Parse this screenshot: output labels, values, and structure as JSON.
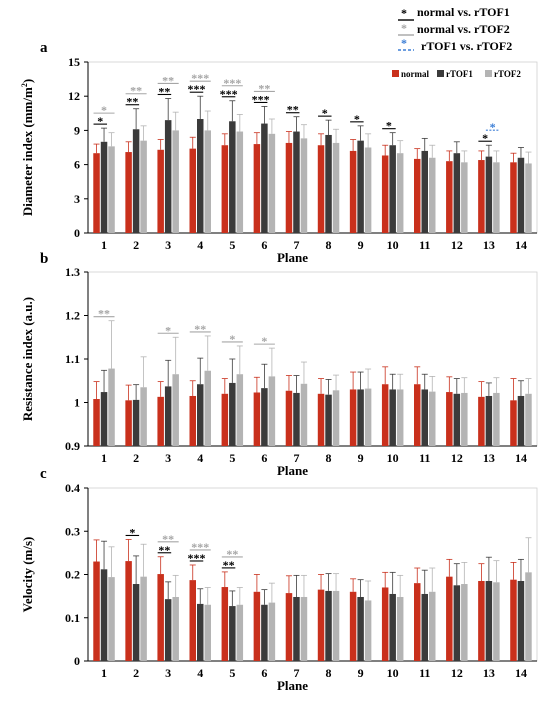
{
  "colors": {
    "normal": "#c9301c",
    "rTOF1": "#3b3b3b",
    "rTOF2": "#b4b4b4",
    "sig_normal_rTOF1": "#000000",
    "sig_normal_rTOF2": "#a6a6a6",
    "sig_rTOF1_rTOF2": "#3d7fd6"
  },
  "top_legend": [
    {
      "key": "normal_vs_rTOF1",
      "label": "normal vs. rTOF1",
      "color": "#000000",
      "dashed": false
    },
    {
      "key": "normal_vs_rTOF2",
      "label": "normal vs. rTOF2",
      "color": "#a6a6a6",
      "dashed": false
    },
    {
      "key": "rTOF1_vs_rTOF2",
      "label": "rTOF1 vs. rTOF2",
      "color": "#3d7fd6",
      "dashed": true
    }
  ],
  "chart_data": [
    {
      "panel": "a",
      "type": "bar",
      "xlabel": "Plane",
      "ylabel": "Diameter index (mm/m²)",
      "ylim": [
        0,
        15
      ],
      "yticks": [
        "0",
        "3",
        "6",
        "9",
        "12",
        "15"
      ],
      "categories": [
        "1",
        "2",
        "3",
        "4",
        "5",
        "6",
        "7",
        "8",
        "9",
        "10",
        "11",
        "12",
        "13",
        "14"
      ],
      "legend_labels": [
        "normal",
        "rTOF1",
        "rTOF2"
      ],
      "legend_position": "top-right",
      "series": [
        {
          "name": "normal",
          "values": [
            7.0,
            7.1,
            7.3,
            7.4,
            7.7,
            7.8,
            7.9,
            7.7,
            7.2,
            6.8,
            6.5,
            6.3,
            6.4,
            6.2
          ],
          "errors": [
            0.8,
            0.9,
            0.9,
            1.0,
            1.0,
            1.0,
            1.0,
            1.0,
            1.0,
            0.9,
            0.9,
            0.9,
            0.8,
            0.8
          ]
        },
        {
          "name": "rTOF1",
          "values": [
            8.0,
            9.1,
            9.9,
            10.0,
            9.8,
            9.6,
            8.9,
            8.6,
            8.1,
            7.7,
            7.2,
            7.0,
            6.7,
            6.6
          ],
          "errors": [
            1.2,
            1.8,
            1.9,
            2.0,
            1.8,
            1.5,
            1.3,
            1.3,
            1.3,
            1.1,
            1.1,
            1.0,
            1.0,
            0.9
          ]
        },
        {
          "name": "rTOF2",
          "values": [
            7.6,
            8.1,
            9.0,
            9.0,
            8.9,
            8.7,
            8.3,
            7.9,
            7.5,
            7.0,
            6.6,
            6.2,
            6.2,
            6.1
          ],
          "errors": [
            1.2,
            1.3,
            1.6,
            1.7,
            1.5,
            1.3,
            1.2,
            1.2,
            1.2,
            1.1,
            1.1,
            1.0,
            1.0,
            1.0
          ]
        }
      ],
      "significance": [
        {
          "plane": 1,
          "pair": "normal_rTOF1",
          "stars": "*"
        },
        {
          "plane": 1,
          "pair": "normal_rTOF2",
          "stars": "*"
        },
        {
          "plane": 2,
          "pair": "normal_rTOF1",
          "stars": "**"
        },
        {
          "plane": 2,
          "pair": "normal_rTOF2",
          "stars": "**"
        },
        {
          "plane": 3,
          "pair": "normal_rTOF1",
          "stars": "**"
        },
        {
          "plane": 3,
          "pair": "normal_rTOF2",
          "stars": "**"
        },
        {
          "plane": 4,
          "pair": "normal_rTOF1",
          "stars": "***"
        },
        {
          "plane": 4,
          "pair": "normal_rTOF2",
          "stars": "***"
        },
        {
          "plane": 5,
          "pair": "normal_rTOF1",
          "stars": "***"
        },
        {
          "plane": 5,
          "pair": "normal_rTOF2",
          "stars": "***"
        },
        {
          "plane": 6,
          "pair": "normal_rTOF1",
          "stars": "***"
        },
        {
          "plane": 6,
          "pair": "normal_rTOF2",
          "stars": "**"
        },
        {
          "plane": 7,
          "pair": "normal_rTOF1",
          "stars": "**"
        },
        {
          "plane": 8,
          "pair": "normal_rTOF1",
          "stars": "*"
        },
        {
          "plane": 9,
          "pair": "normal_rTOF1",
          "stars": "*"
        },
        {
          "plane": 10,
          "pair": "normal_rTOF1",
          "stars": "*"
        },
        {
          "plane": 13,
          "pair": "normal_rTOF1",
          "stars": "*"
        },
        {
          "plane": 13,
          "pair": "rTOF1_rTOF2",
          "stars": "*"
        }
      ]
    },
    {
      "panel": "b",
      "type": "bar",
      "xlabel": "Plane",
      "ylabel": "Resistance index (a.u.)",
      "ylim": [
        0.9,
        1.3
      ],
      "yticks": [
        "0.9",
        "1",
        "1.1",
        "1.2",
        "1.3"
      ],
      "categories": [
        "1",
        "2",
        "3",
        "4",
        "5",
        "6",
        "7",
        "8",
        "9",
        "10",
        "11",
        "12",
        "13",
        "14"
      ],
      "series": [
        {
          "name": "normal",
          "values": [
            1.008,
            1.005,
            1.013,
            1.015,
            1.02,
            1.023,
            1.027,
            1.02,
            1.03,
            1.042,
            1.042,
            1.024,
            1.013,
            1.005
          ],
          "errors": [
            0.04,
            0.035,
            0.035,
            0.035,
            0.035,
            0.035,
            0.035,
            0.035,
            0.04,
            0.04,
            0.04,
            0.035,
            0.035,
            0.05
          ]
        },
        {
          "name": "rTOF1",
          "values": [
            1.024,
            1.006,
            1.037,
            1.042,
            1.045,
            1.033,
            1.022,
            1.018,
            1.03,
            1.03,
            1.03,
            1.02,
            1.015,
            1.015
          ],
          "errors": [
            0.05,
            0.035,
            0.06,
            0.06,
            0.055,
            0.055,
            0.04,
            0.035,
            0.04,
            0.035,
            0.035,
            0.035,
            0.03,
            0.035
          ]
        },
        {
          "name": "rTOF2",
          "values": [
            1.078,
            1.035,
            1.065,
            1.073,
            1.065,
            1.06,
            1.043,
            1.028,
            1.032,
            1.03,
            1.025,
            1.022,
            1.022,
            1.02
          ],
          "errors": [
            0.11,
            0.07,
            0.085,
            0.08,
            0.065,
            0.065,
            0.05,
            0.035,
            0.045,
            0.035,
            0.035,
            0.035,
            0.035,
            0.035
          ]
        }
      ],
      "significance": [
        {
          "plane": 1,
          "pair": "normal_rTOF2",
          "stars": "**"
        },
        {
          "plane": 3,
          "pair": "normal_rTOF2",
          "stars": "*"
        },
        {
          "plane": 4,
          "pair": "normal_rTOF2",
          "stars": "**"
        },
        {
          "plane": 5,
          "pair": "normal_rTOF2",
          "stars": "*"
        },
        {
          "plane": 6,
          "pair": "normal_rTOF2",
          "stars": "*"
        }
      ]
    },
    {
      "panel": "c",
      "type": "bar",
      "xlabel": "Plane",
      "ylabel": "Velocity (m/s)",
      "ylim": [
        0,
        0.4
      ],
      "yticks": [
        "0",
        "0.1",
        "0.2",
        "0.3",
        "0.4"
      ],
      "categories": [
        "1",
        "2",
        "3",
        "4",
        "5",
        "6",
        "7",
        "8",
        "9",
        "10",
        "11",
        "12",
        "13",
        "14"
      ],
      "series": [
        {
          "name": "normal",
          "values": [
            0.23,
            0.231,
            0.201,
            0.187,
            0.171,
            0.16,
            0.157,
            0.165,
            0.16,
            0.17,
            0.18,
            0.195,
            0.185,
            0.188
          ],
          "errors": [
            0.05,
            0.05,
            0.04,
            0.035,
            0.035,
            0.04,
            0.04,
            0.035,
            0.03,
            0.035,
            0.035,
            0.04,
            0.04,
            0.04
          ]
        },
        {
          "name": "rTOF1",
          "values": [
            0.212,
            0.178,
            0.143,
            0.132,
            0.127,
            0.13,
            0.148,
            0.162,
            0.148,
            0.155,
            0.155,
            0.175,
            0.185,
            0.185
          ],
          "errors": [
            0.065,
            0.065,
            0.04,
            0.035,
            0.035,
            0.035,
            0.05,
            0.04,
            0.04,
            0.05,
            0.055,
            0.05,
            0.055,
            0.05
          ]
        },
        {
          "name": "rTOF2",
          "values": [
            0.194,
            0.195,
            0.148,
            0.13,
            0.13,
            0.135,
            0.148,
            0.162,
            0.14,
            0.148,
            0.16,
            0.178,
            0.182,
            0.205
          ],
          "errors": [
            0.07,
            0.075,
            0.05,
            0.04,
            0.04,
            0.045,
            0.05,
            0.04,
            0.045,
            0.05,
            0.055,
            0.05,
            0.05,
            0.08
          ]
        }
      ],
      "significance": [
        {
          "plane": 2,
          "pair": "normal_rTOF1",
          "stars": "*"
        },
        {
          "plane": 3,
          "pair": "normal_rTOF1",
          "stars": "**"
        },
        {
          "plane": 3,
          "pair": "normal_rTOF2",
          "stars": "**"
        },
        {
          "plane": 4,
          "pair": "normal_rTOF1",
          "stars": "***"
        },
        {
          "plane": 4,
          "pair": "normal_rTOF2",
          "stars": "***"
        },
        {
          "plane": 5,
          "pair": "normal_rTOF1",
          "stars": "**"
        },
        {
          "plane": 5,
          "pair": "normal_rTOF2",
          "stars": "**"
        }
      ]
    }
  ]
}
